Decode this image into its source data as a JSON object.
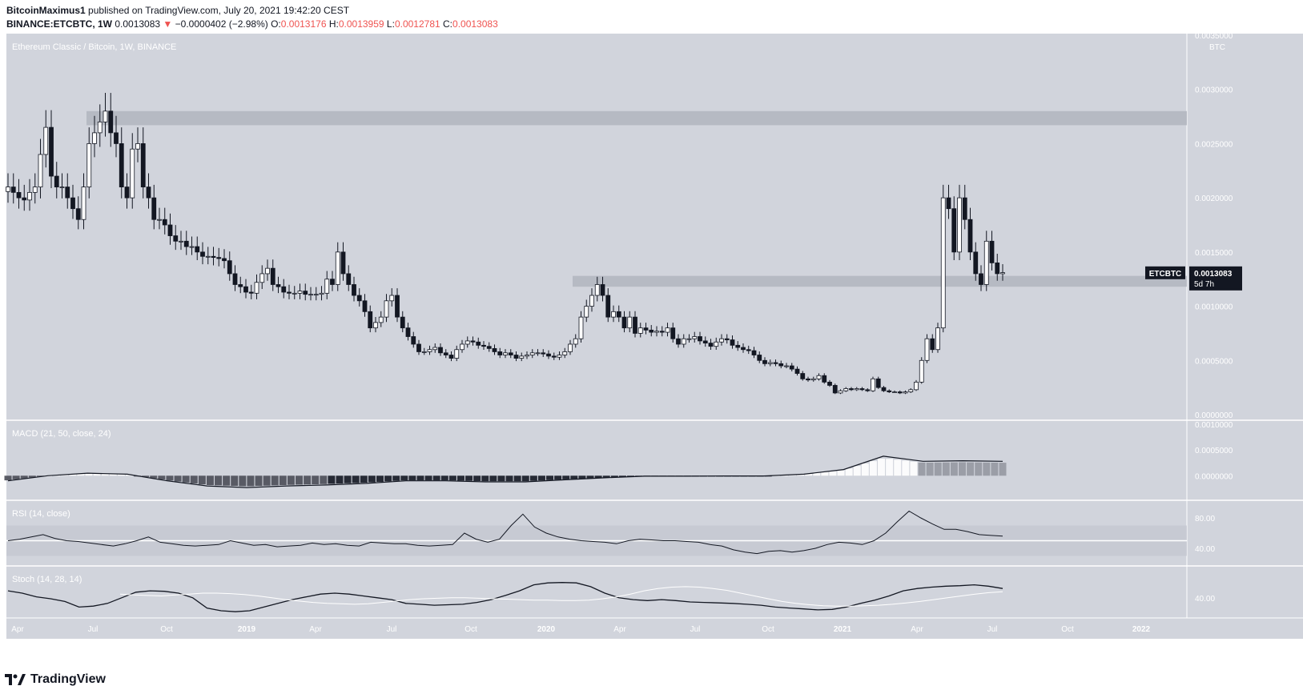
{
  "header": {
    "author": "BitcoinMaximus1",
    "published_text": "published on TradingView.com, July 20, 2021 19:42:20 CEST",
    "symbol_line": "BINANCE:ETCBTC, 1W",
    "last_price": "0.0013083",
    "change_arrow": "▼",
    "change": "−0.0000402 (−2.98%)",
    "o_label": "O:",
    "o_value": "0.0013176",
    "h_label": "H:",
    "h_value": "0.0013959",
    "l_label": "L:",
    "l_value": "0.0012781",
    "c_label": "C:",
    "c_value": "0.0013083"
  },
  "panes": {
    "main_title": "Ethereum Classic / Bitcoin, 1W, BINANCE",
    "macd_title": "MACD (21, 50, close, 24)",
    "rsi_title": "RSI (14, close)",
    "stoch_title": "Stoch (14, 28, 14)",
    "currency": "BTC",
    "price_tag_symbol": "ETCBTC",
    "price_tag_value": "0.0013083",
    "price_tag_countdown": "5d 7h"
  },
  "footer": {
    "brand": "TradingView"
  },
  "colors": {
    "background": "#d1d4dc",
    "candle_up": "#ffffff",
    "candle_down": "#131722",
    "zone": "#b2b5be",
    "separator": "#ffffff",
    "header_red": "#ef5350"
  },
  "chart_data": [
    {
      "type": "candlestick",
      "title": "Ethereum Classic / Bitcoin, 1W, BINANCE",
      "ylabel": "BTC",
      "ylim": [
        0,
        0.0035
      ],
      "y_ticks": [
        "0.0000000",
        "0.0005000",
        "0.0010000",
        "0.0015000",
        "0.0020000",
        "0.0025000",
        "0.0030000",
        "0.0035000"
      ],
      "x_ticks": [
        "Apr",
        "Jul",
        "Oct",
        "2019",
        "Apr",
        "Jul",
        "Oct",
        "2020",
        "Apr",
        "Jul",
        "Oct",
        "2021",
        "Apr",
        "Jul",
        "Oct",
        "2022"
      ],
      "last_value": 0.0013083,
      "zones": [
        {
          "from": 0.00267,
          "to": 0.0028
        },
        {
          "from": 0.00118,
          "to": 0.00128
        }
      ],
      "series": [
        {
          "name": "ETCBTC",
          "close": [
            0.0021,
            0.00205,
            0.002,
            0.00198,
            0.00205,
            0.0021,
            0.0024,
            0.00265,
            0.0022,
            0.0021,
            0.0021,
            0.002,
            0.0019,
            0.0018,
            0.0021,
            0.0025,
            0.0026,
            0.0027,
            0.0028,
            0.0026,
            0.0025,
            0.0021,
            0.002,
            0.00245,
            0.0025,
            0.0021,
            0.002,
            0.0018,
            0.0018,
            0.00175,
            0.00165,
            0.0016,
            0.0016,
            0.00155,
            0.00155,
            0.0015,
            0.00146,
            0.00146,
            0.00145,
            0.00144,
            0.00142,
            0.0013,
            0.0012,
            0.00118,
            0.00113,
            0.00112,
            0.00122,
            0.0013,
            0.00135,
            0.0012,
            0.00118,
            0.00113,
            0.00112,
            0.00112,
            0.00114,
            0.00111,
            0.00111,
            0.00111,
            0.00112,
            0.00125,
            0.0012,
            0.0015,
            0.0013,
            0.0012,
            0.0011,
            0.00105,
            0.00095,
            0.0008,
            0.00085,
            0.0009,
            0.00105,
            0.0011,
            0.0009,
            0.0008,
            0.00072,
            0.00065,
            0.00058,
            0.00058,
            0.0006,
            0.00062,
            0.00057,
            0.00055,
            0.00052,
            0.0006,
            0.00065,
            0.00068,
            0.00067,
            0.00064,
            0.00063,
            0.00061,
            0.00058,
            0.00055,
            0.00057,
            0.00055,
            0.00052,
            0.00054,
            0.00055,
            0.00057,
            0.00057,
            0.00056,
            0.00054,
            0.00053,
            0.00055,
            0.00058,
            0.00065,
            0.0007,
            0.0009,
            0.001,
            0.0011,
            0.0012,
            0.0011,
            0.0009,
            0.00095,
            0.0009,
            0.0008,
            0.0009,
            0.00075,
            0.0008,
            0.00078,
            0.00076,
            0.00077,
            0.00076,
            0.0008,
            0.0007,
            0.00065,
            0.0007,
            0.0007,
            0.00072,
            0.00068,
            0.00066,
            0.00063,
            0.00067,
            0.0007,
            0.00069,
            0.00064,
            0.00062,
            0.0006,
            0.00059,
            0.00055,
            0.0005,
            0.00047,
            0.00048,
            0.00047,
            0.00045,
            0.00045,
            0.00042,
            0.00038,
            0.00033,
            0.00032,
            0.00033,
            0.00036,
            0.0003,
            0.00027,
            0.0002,
            0.00022,
            0.00024,
            0.00023,
            0.00024,
            0.00023,
            0.00022,
            0.00033,
            0.00025,
            0.00022,
            0.00021,
            0.00021,
            0.0002,
            0.00021,
            0.00023,
            0.0003,
            0.0005,
            0.0007,
            0.0006,
            0.0008,
            0.002,
            0.0019,
            0.0015,
            0.002,
            0.0018,
            0.0015,
            0.0013,
            0.0012,
            0.0016,
            0.0014,
            0.0013,
            0.00131
          ]
        }
      ]
    },
    {
      "type": "line",
      "title": "MACD (21, 50, close, 24)",
      "ylim": [
        -0.0004,
        0.001
      ],
      "y_ticks": [
        "0.0000000",
        "0.0005000",
        "0.0010000"
      ],
      "series": [
        {
          "name": "MACD",
          "values": [
            -0.0001,
            0.0,
            5e-05,
            3e-05,
            -0.0001,
            -0.0002,
            -0.00023,
            -0.0002,
            -0.00018,
            -0.00015,
            -0.0001,
            -0.0001,
            -0.00012,
            -0.00012,
            -8e-05,
            -4e-05,
            -1e-05,
            -1e-05,
            -5e-06,
            -5e-06,
            3e-05,
            0.00012,
            0.00038,
            0.00028,
            0.00029,
            0.00028
          ]
        }
      ]
    },
    {
      "type": "line",
      "title": "RSI (14, close)",
      "ylim": [
        20,
        100
      ],
      "y_ticks": [
        "40.00",
        "80.00"
      ],
      "band": [
        30,
        70
      ],
      "series": [
        {
          "name": "RSI",
          "values": [
            50,
            52,
            55,
            58,
            53,
            50,
            49,
            47,
            45,
            43,
            46,
            50,
            55,
            48,
            46,
            44,
            43,
            44,
            45,
            50,
            47,
            44,
            45,
            42,
            43,
            44,
            47,
            45,
            46,
            44,
            43,
            48,
            47,
            46,
            46,
            44,
            43,
            44,
            45,
            60,
            52,
            48,
            52,
            70,
            85,
            68,
            60,
            55,
            52,
            50,
            49,
            48,
            46,
            50,
            52,
            51,
            50,
            50,
            49,
            48,
            45,
            43,
            38,
            35,
            33,
            36,
            37,
            35,
            37,
            40,
            45,
            48,
            47,
            45,
            50,
            60,
            75,
            89,
            80,
            72,
            65,
            65,
            62,
            58,
            57,
            56
          ]
        }
      ]
    },
    {
      "type": "line",
      "title": "Stoch (14, 28, 14)",
      "ylim": [
        0,
        100
      ],
      "y_ticks": [
        "40.00"
      ],
      "series": [
        {
          "name": "%K",
          "values": [
            55,
            50,
            42,
            38,
            32,
            20,
            22,
            28,
            40,
            52,
            55,
            54,
            50,
            40,
            18,
            12,
            10,
            12,
            20,
            28,
            36,
            42,
            48,
            50,
            48,
            44,
            40,
            36,
            28,
            26,
            24,
            25,
            26,
            30,
            36,
            45,
            55,
            68,
            72,
            73,
            72,
            64,
            50,
            40,
            36,
            34,
            36,
            34,
            31,
            30,
            29,
            28,
            26,
            24,
            20,
            18,
            16,
            14,
            15,
            20,
            28,
            35,
            44,
            55,
            60,
            63,
            65,
            66,
            68,
            65,
            60
          ]
        },
        {
          "name": "%D",
          "values": [
            48,
            46,
            45,
            44,
            46,
            48,
            50,
            50,
            49,
            47,
            44,
            40,
            36,
            33,
            30,
            28,
            27,
            26,
            27,
            30,
            33,
            36,
            38,
            39,
            40,
            40,
            39,
            38,
            37,
            36,
            35,
            35,
            34,
            34,
            35,
            38,
            42,
            48,
            55,
            60,
            63,
            64,
            63,
            60,
            56,
            50,
            44,
            38,
            32,
            28,
            25,
            23,
            22,
            22,
            23,
            24,
            26,
            29,
            32,
            36,
            40,
            44,
            48,
            51,
            53
          ]
        }
      ]
    }
  ]
}
